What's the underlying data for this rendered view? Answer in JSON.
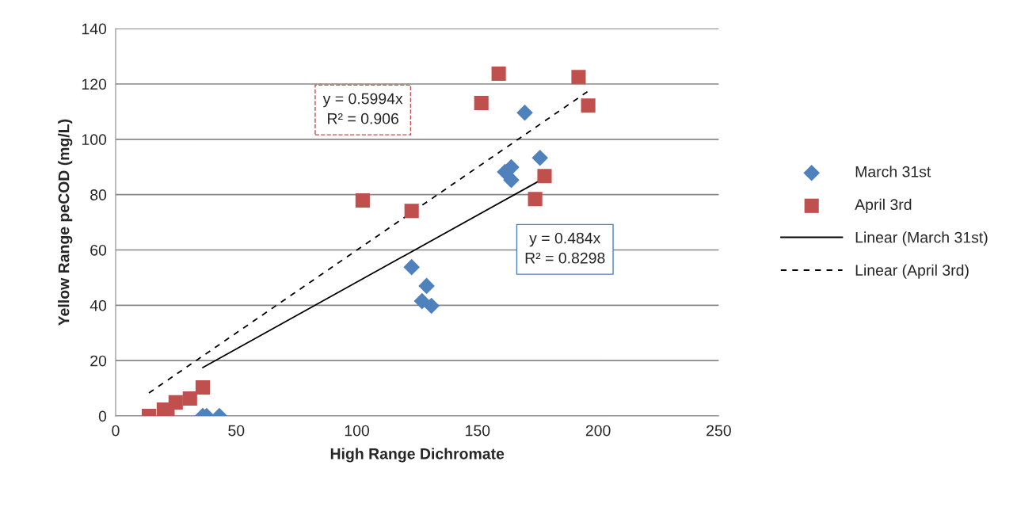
{
  "chart_data": {
    "type": "scatter",
    "xlabel": "High Range Dichromate",
    "ylabel": "Yellow Range peCOD (mg/L)",
    "xlim": [
      0,
      250
    ],
    "xticks": [
      0,
      50,
      100,
      150,
      200,
      250
    ],
    "ylim": [
      0,
      140
    ],
    "yticks": [
      0,
      20,
      40,
      60,
      80,
      100,
      120,
      140
    ],
    "grid": "y",
    "legend": "right",
    "series": [
      {
        "name": "March 31st",
        "color": "#4f81bd",
        "marker": "diamond",
        "x": [
          36.1,
          37.7,
          43,
          122.7,
          128.9,
          127,
          130.9,
          169.6,
          161.4,
          164,
          164,
          175.9
        ],
        "values": [
          0,
          0,
          0,
          53.8,
          47.0,
          41.5,
          39.8,
          109.6,
          88.2,
          89.9,
          85.3,
          93.3
        ]
      },
      {
        "name": "April 3rd",
        "color": "#c0504d",
        "marker": "square",
        "x": [
          13.8,
          20,
          21.5,
          24.9,
          30.8,
          36.1,
          151.6,
          158.8,
          191.9,
          195.9,
          102.4,
          122.7,
          173.9,
          177.8
        ],
        "values": [
          0,
          2.3,
          0,
          4.9,
          6.3,
          10.3,
          113.1,
          123.7,
          122.5,
          112.2,
          77.9,
          74.1,
          78.4,
          86.7
        ]
      },
      {
        "name": "Linear (March 31st)",
        "type": "line",
        "color": "#000000",
        "line_style": "solid",
        "x": [
          36.1,
          175.9
        ],
        "values": [
          17.5,
          85.1
        ]
      },
      {
        "name": "Linear (April 3rd)",
        "type": "line",
        "color": "#000000",
        "line_style": "dashed",
        "x": [
          13.8,
          195.9
        ],
        "values": [
          8.3,
          117.4
        ]
      }
    ],
    "annotations": [
      "y = 0.5994x\nR² = 0.906",
      "y = 0.484x\nR² = 0.8298"
    ]
  }
}
